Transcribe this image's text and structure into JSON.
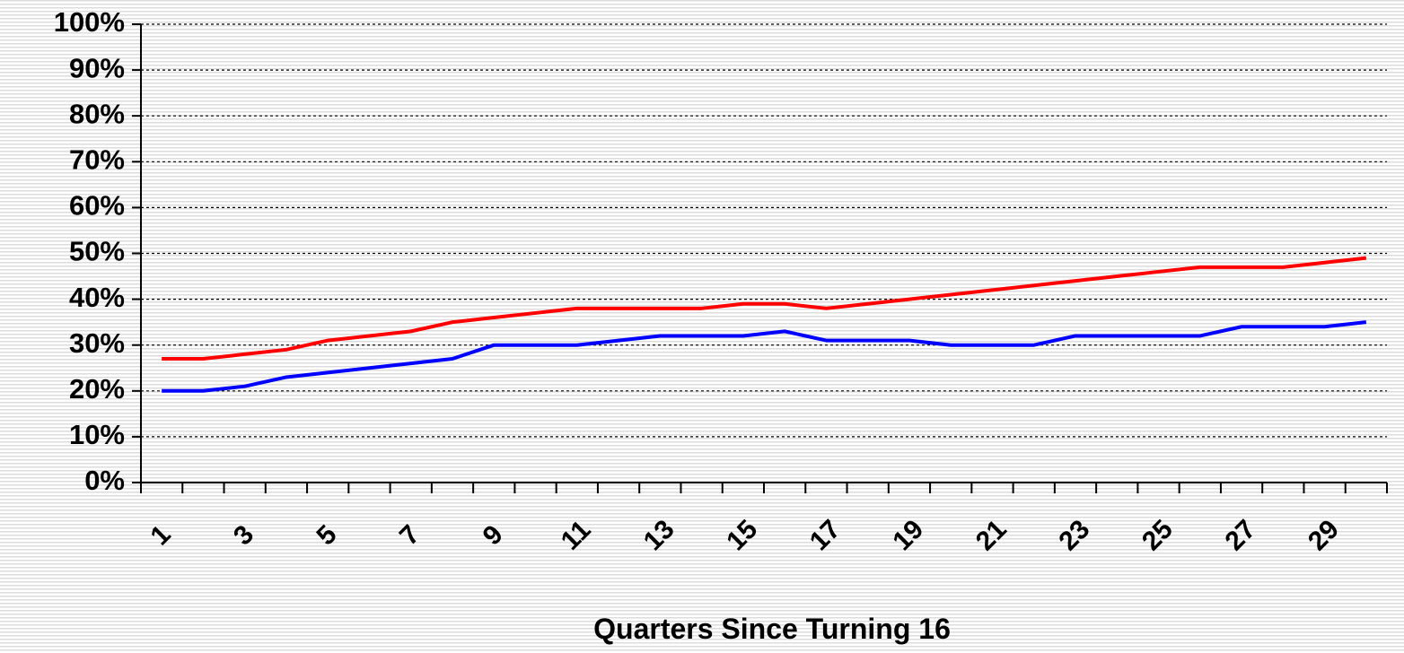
{
  "chart_data": {
    "type": "line",
    "x_label": "Quarters Since Turning 16",
    "categories": [
      "1",
      null,
      "3",
      null,
      "5",
      null,
      "7",
      null,
      "9",
      null,
      "11",
      null,
      "13",
      null,
      "15",
      null,
      "17",
      null,
      "19",
      null,
      "21",
      null,
      "23",
      null,
      "25",
      null,
      "27",
      null,
      "29",
      null
    ],
    "series": [
      {
        "color": "#ff0000",
        "values": [
          27,
          27,
          28,
          29,
          31,
          32,
          33,
          35,
          36,
          37,
          38,
          38,
          38,
          38,
          39,
          39,
          38,
          39,
          40,
          41,
          42,
          43,
          44,
          45,
          46,
          47,
          47,
          47,
          48,
          49
        ]
      },
      {
        "color": "#0000ff",
        "values": [
          20,
          20,
          21,
          23,
          24,
          25,
          26,
          27,
          30,
          30,
          30,
          31,
          32,
          32,
          32,
          33,
          31,
          31,
          31,
          30,
          30,
          30,
          32,
          32,
          32,
          32,
          34,
          34,
          34,
          35
        ]
      }
    ],
    "ylim": [
      0,
      100
    ],
    "yticks": [
      {
        "value": 0,
        "label": "0%"
      },
      {
        "value": 10,
        "label": "10%"
      },
      {
        "value": 20,
        "label": "20%"
      },
      {
        "value": 30,
        "label": "30%"
      },
      {
        "value": 40,
        "label": "40%"
      },
      {
        "value": 50,
        "label": "50%"
      },
      {
        "value": 60,
        "label": "60%"
      },
      {
        "value": 70,
        "label": "70%"
      },
      {
        "value": 80,
        "label": "80%"
      },
      {
        "value": 90,
        "label": "90%"
      },
      {
        "value": 100,
        "label": "100%"
      }
    ],
    "grid": true
  }
}
